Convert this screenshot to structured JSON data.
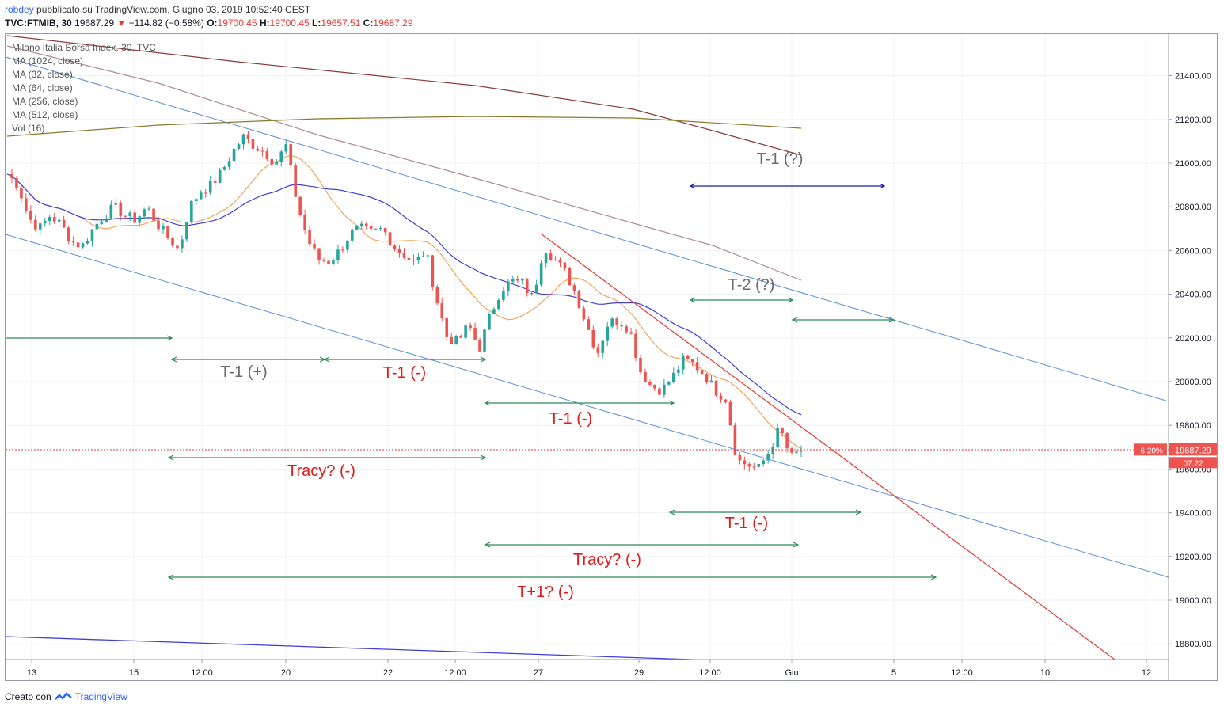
{
  "header": {
    "user": "robdey",
    "published": " pubblicato su TradingView.com, Giugno 03, 2019 10:52:40 CEST",
    "symbol": "TVC:FTMIB, 30",
    "last": "19687.29",
    "change": "−114.82 (−0.58%)",
    "o_label": "O:",
    "o": "19700.45",
    "h_label": "H:",
    "h": "19700.45",
    "l_label": "L:",
    "l": "19657.51",
    "c_label": "C:",
    "c": "19687.29"
  },
  "legend": [
    "Milano Italia Borsa Index, 30, TVC",
    "MA (1024, close)",
    "MA (32, close)",
    "MA (64, close)",
    "MA (256, close)",
    "MA (512, close)",
    "Vol (16)"
  ],
  "footer": {
    "created": "Creato con",
    "brand": "TradingView"
  },
  "colors": {
    "up": "#26a69a",
    "down": "#ef5350",
    "ma32": "#f4a460",
    "ma64": "#3f3fd8",
    "ma256": "#b08a96",
    "ma512": "#8b3a3a",
    "ma1024": "#8b7a2b",
    "channel": "#5b8fd6",
    "trend": "#e53935",
    "green_arrow": "#2e8b57",
    "blue_arrow": "#1c1cb4"
  },
  "chart_data": {
    "type": "candlestick",
    "title": "Milano Italia Borsa Index, 30, TVC",
    "ylim": [
      18700,
      21600
    ],
    "y_ticks": [
      18800,
      19000,
      19200,
      19400,
      19600,
      19800,
      20000,
      20200,
      20400,
      20600,
      20800,
      21000,
      21200,
      21400
    ],
    "y_tick_labels": [
      "18800.00",
      "19000.00",
      "19200.00",
      "19400.00",
      "19600.00",
      "19800.00",
      "20000.00",
      "20200.00",
      "20400.00",
      "20600.00",
      "20800.00",
      "21000.00",
      "21200.00",
      "21400.00"
    ],
    "x_ticks": [
      "13",
      "15",
      "12:00",
      "20",
      "22",
      "12:00",
      "27",
      "29",
      "12:00",
      "Giu",
      "5",
      "12:00",
      "10",
      "12"
    ],
    "last_price_label": "19687.29",
    "pct_label": "-6.20%",
    "countdown": "07:22",
    "ohlc_close_path": [
      [
        0,
        20950
      ],
      [
        2,
        20900
      ],
      [
        4,
        20750
      ],
      [
        6,
        20700
      ],
      [
        8,
        20760
      ],
      [
        10,
        20720
      ],
      [
        12,
        20640
      ],
      [
        14,
        20620
      ],
      [
        16,
        20700
      ],
      [
        18,
        20760
      ],
      [
        20,
        20800
      ],
      [
        22,
        20760
      ],
      [
        24,
        20740
      ],
      [
        26,
        20800
      ],
      [
        28,
        20720
      ],
      [
        30,
        20660
      ],
      [
        32,
        20600
      ],
      [
        34,
        20800
      ],
      [
        36,
        20870
      ],
      [
        38,
        20900
      ],
      [
        40,
        20960
      ],
      [
        42,
        21050
      ],
      [
        44,
        21120
      ],
      [
        46,
        21080
      ],
      [
        48,
        21050
      ],
      [
        50,
        21000
      ],
      [
        52,
        21080
      ],
      [
        54,
        20820
      ],
      [
        56,
        20650
      ],
      [
        58,
        20560
      ],
      [
        60,
        20550
      ],
      [
        62,
        20600
      ],
      [
        64,
        20680
      ],
      [
        66,
        20700
      ],
      [
        68,
        20680
      ],
      [
        70,
        20700
      ],
      [
        72,
        20620
      ],
      [
        74,
        20580
      ],
      [
        76,
        20540
      ],
      [
        78,
        20600
      ],
      [
        80,
        20380
      ],
      [
        82,
        20200
      ],
      [
        84,
        20180
      ],
      [
        86,
        20260
      ],
      [
        88,
        20150
      ],
      [
        90,
        20300
      ],
      [
        92,
        20420
      ],
      [
        94,
        20460
      ],
      [
        96,
        20450
      ],
      [
        98,
        20380
      ],
      [
        100,
        20620
      ],
      [
        102,
        20560
      ],
      [
        104,
        20500
      ],
      [
        106,
        20400
      ],
      [
        108,
        20260
      ],
      [
        110,
        20130
      ],
      [
        112,
        20270
      ],
      [
        114,
        20280
      ],
      [
        116,
        20240
      ],
      [
        118,
        20050
      ],
      [
        120,
        19980
      ],
      [
        122,
        19960
      ],
      [
        124,
        20020
      ],
      [
        126,
        20100
      ],
      [
        128,
        20080
      ],
      [
        130,
        20030
      ],
      [
        132,
        19960
      ],
      [
        134,
        19920
      ],
      [
        136,
        19640
      ],
      [
        138,
        19620
      ],
      [
        140,
        19600
      ],
      [
        142,
        19680
      ],
      [
        144,
        19790
      ],
      [
        146,
        19650
      ],
      [
        148,
        19687
      ]
    ]
  },
  "annotations": {
    "t1_q_top": "T-1 (?)",
    "t2_q": "T-2 (?)",
    "t1_plus": "T-1 (+)",
    "t1_minus_a": "T-1 (-)",
    "t1_minus_b": "T-1 (-)",
    "tracy_a": "Tracy? (-)",
    "t1_minus_c": "T-1 (-)",
    "tracy_b": "Tracy? (-)",
    "tplus1": "T+1? (-)"
  }
}
